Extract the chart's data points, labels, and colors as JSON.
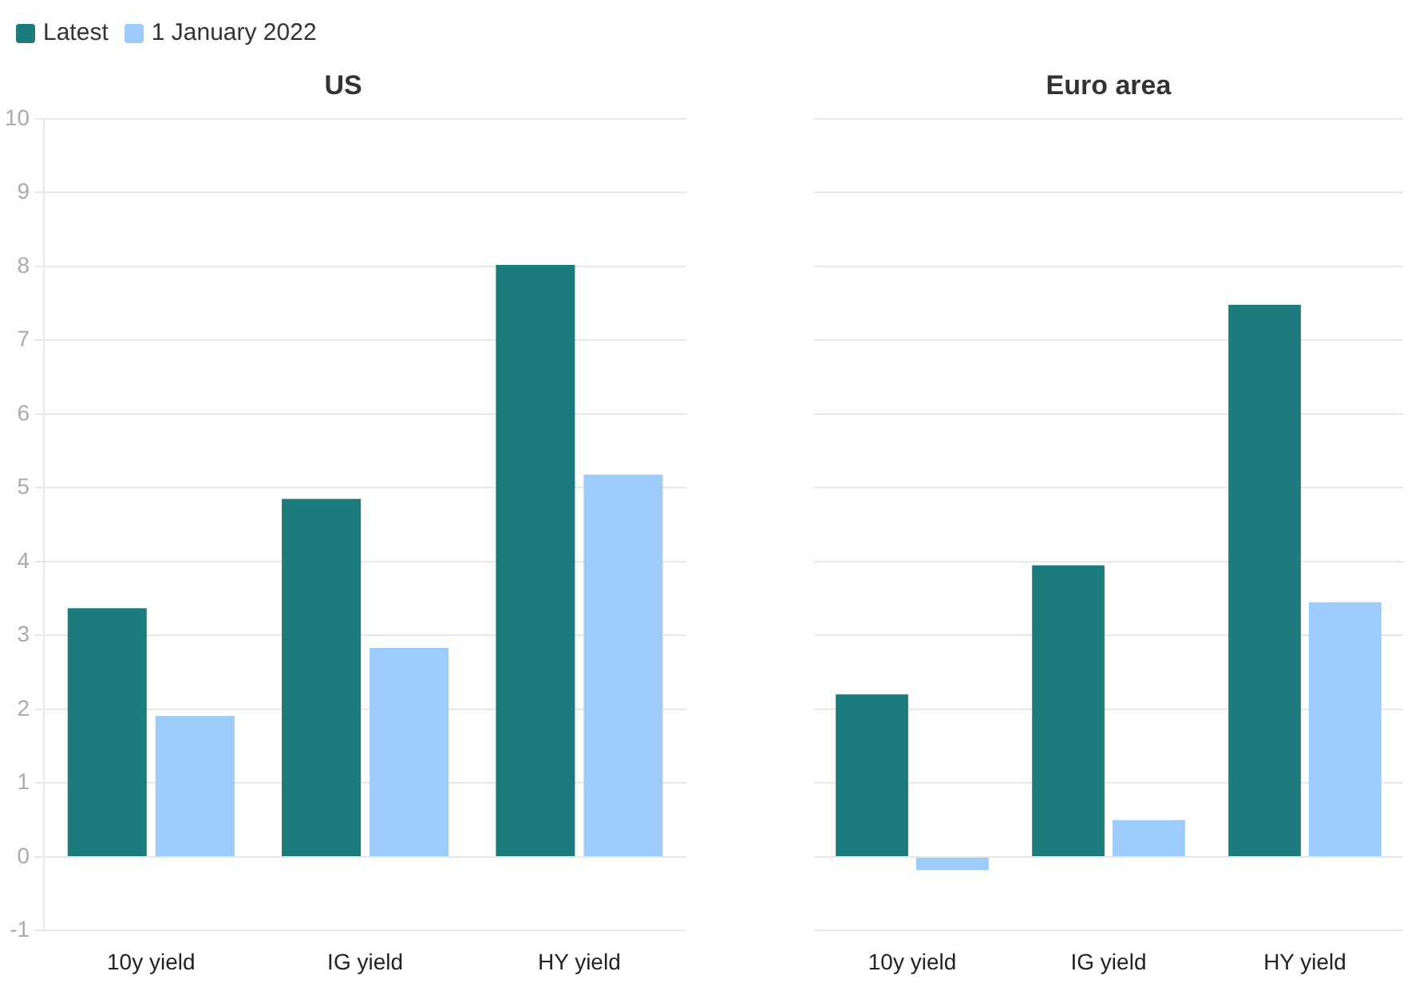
{
  "chart_data": [
    {
      "type": "bar",
      "title": "US",
      "categories": [
        "10y yield",
        "IG yield",
        "HY yield"
      ],
      "series": [
        {
          "name": "Latest",
          "color": "#1b7b7d",
          "values": [
            3.37,
            4.85,
            8.02
          ]
        },
        {
          "name": "1 January 2022",
          "color": "#9ccbfc",
          "values": [
            1.91,
            2.83,
            5.18
          ]
        }
      ],
      "ylim": [
        -1,
        10
      ],
      "yticks": [
        -1,
        0,
        1,
        2,
        3,
        4,
        5,
        6,
        7,
        8,
        9,
        10
      ],
      "grid": "y",
      "legend": "top left"
    },
    {
      "type": "bar",
      "title": "Euro area",
      "categories": [
        "10y yield",
        "IG yield",
        "HY yield"
      ],
      "series": [
        {
          "color": "#1b7b7d",
          "values": [
            2.2,
            3.95,
            7.48
          ]
        },
        {
          "color": "#9ccbfc",
          "values": [
            -0.18,
            0.5,
            3.45
          ]
        }
      ],
      "ylim": [
        -1,
        10
      ],
      "yticks": [
        -1,
        0,
        1,
        2,
        3,
        4,
        5,
        6,
        7,
        8,
        9,
        10
      ],
      "grid": "y",
      "tick_labels": "x"
    }
  ]
}
